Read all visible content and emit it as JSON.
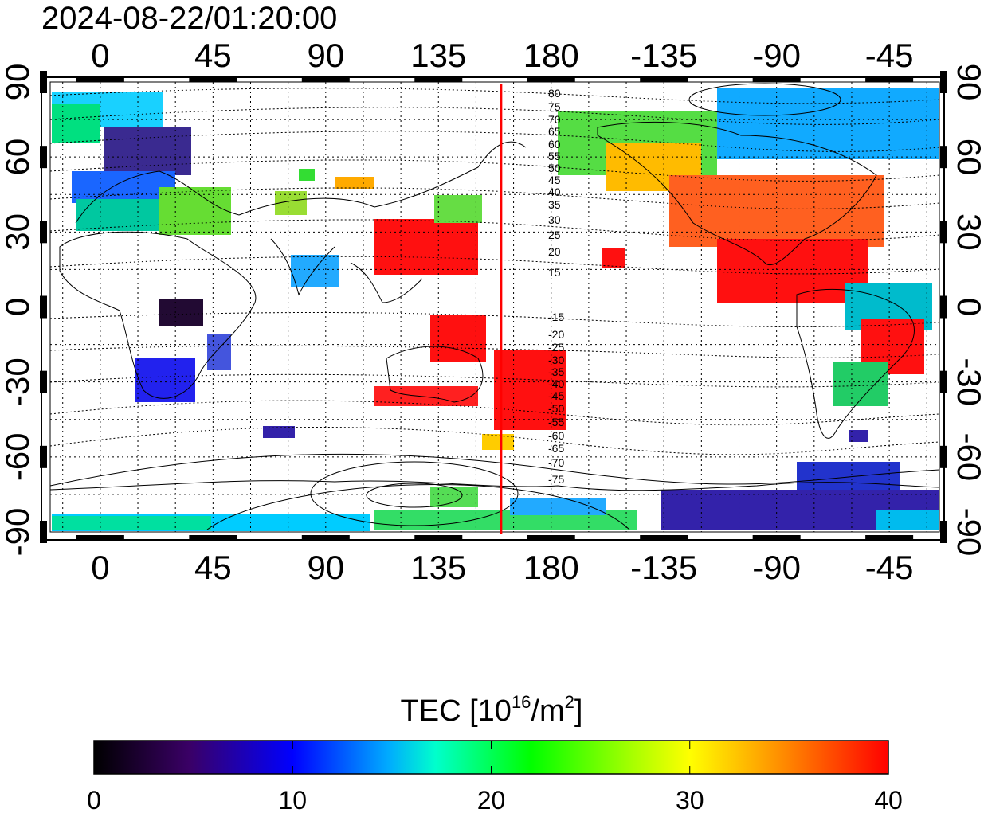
{
  "timestamp": "2024-08-22/01:20:00",
  "map": {
    "lon_ticks": [
      {
        "value": 0,
        "label": "0"
      },
      {
        "value": 45,
        "label": "45"
      },
      {
        "value": 90,
        "label": "90"
      },
      {
        "value": 135,
        "label": "135"
      },
      {
        "value": 180,
        "label": "180"
      },
      {
        "value": 225,
        "label": "-135"
      },
      {
        "value": 270,
        "label": "-90"
      },
      {
        "value": 315,
        "label": "-45"
      }
    ],
    "lat_ticks": [
      {
        "value": 90,
        "label": "90"
      },
      {
        "value": 60,
        "label": "60"
      },
      {
        "value": 30,
        "label": "30"
      },
      {
        "value": 0,
        "label": "0"
      },
      {
        "value": -30,
        "label": "-30"
      },
      {
        "value": -60,
        "label": "-60"
      },
      {
        "value": -90,
        "label": "-90"
      }
    ],
    "lon_range": [
      -20,
      335
    ],
    "lat_range": [
      -90,
      90
    ],
    "grid": "dotted",
    "marker_longitude": 160,
    "marker_color": "#ff0000",
    "contour_labels_north": [
      "80",
      "75",
      "70",
      "65",
      "60",
      "55",
      "50",
      "45",
      "40",
      "35",
      "30",
      "25",
      "20",
      "15"
    ],
    "contour_labels_south": [
      "-15",
      "-20",
      "-25",
      "-30",
      "-35",
      "-40",
      "-45",
      "-50",
      "-55",
      "-60",
      "-65",
      "-70",
      "-75"
    ]
  },
  "colorbar": {
    "title_main": "TEC  [10",
    "title_sup1": "16",
    "title_mid": "/m",
    "title_sup2": "2",
    "title_end": "]",
    "ticks": [
      "0",
      "10",
      "20",
      "30",
      "40"
    ],
    "range": [
      0,
      40
    ],
    "colors": [
      "#000000",
      "#3a0066",
      "#0000ff",
      "#00aaff",
      "#00ffcc",
      "#00ff00",
      "#aaff00",
      "#ffff00",
      "#ff8800",
      "#ff0000"
    ]
  }
}
